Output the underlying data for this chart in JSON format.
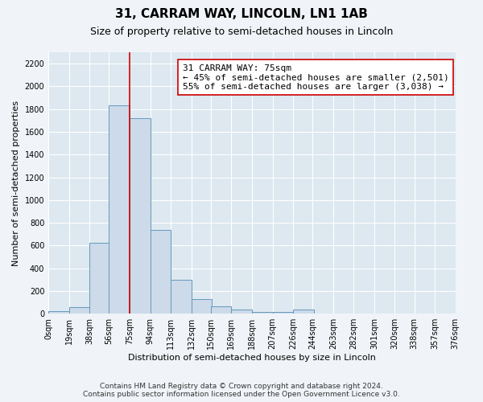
{
  "title": "31, CARRAM WAY, LINCOLN, LN1 1AB",
  "subtitle": "Size of property relative to semi-detached houses in Lincoln",
  "xlabel": "Distribution of semi-detached houses by size in Lincoln",
  "ylabel": "Number of semi-detached properties",
  "footer_line1": "Contains HM Land Registry data © Crown copyright and database right 2024.",
  "footer_line2": "Contains public sector information licensed under the Open Government Licence v3.0.",
  "bar_left_edges": [
    0,
    19,
    38,
    56,
    75,
    94,
    113,
    132,
    150,
    169,
    188,
    207,
    226,
    244,
    263,
    282,
    301,
    320,
    338,
    357
  ],
  "bar_heights": [
    20,
    60,
    625,
    1830,
    1720,
    740,
    300,
    130,
    65,
    35,
    15,
    15,
    40,
    0,
    0,
    0,
    0,
    0,
    0,
    0
  ],
  "bin_width": 19,
  "bar_fill_color": "#ccdaea",
  "bar_edge_color": "#6699bb",
  "vline_x": 75,
  "vline_color": "#cc0000",
  "annotation_title": "31 CARRAM WAY: 75sqm",
  "annotation_line1": "← 45% of semi-detached houses are smaller (2,501)",
  "annotation_line2": "55% of semi-detached houses are larger (3,038) →",
  "annotation_box_color": "#ffffff",
  "annotation_box_edge": "#cc0000",
  "ylim": [
    0,
    2300
  ],
  "yticks": [
    0,
    200,
    400,
    600,
    800,
    1000,
    1200,
    1400,
    1600,
    1800,
    2000,
    2200
  ],
  "x_tick_labels": [
    "0sqm",
    "19sqm",
    "38sqm",
    "56sqm",
    "75sqm",
    "94sqm",
    "113sqm",
    "132sqm",
    "150sqm",
    "169sqm",
    "188sqm",
    "207sqm",
    "226sqm",
    "244sqm",
    "263sqm",
    "282sqm",
    "301sqm",
    "320sqm",
    "338sqm",
    "357sqm",
    "376sqm"
  ],
  "plot_bg_color": "#dde8f0",
  "fig_bg_color": "#f0f4f8",
  "grid_color": "#ffffff",
  "title_fontsize": 11,
  "subtitle_fontsize": 9,
  "axis_label_fontsize": 8,
  "tick_fontsize": 7,
  "annotation_fontsize": 8,
  "footer_fontsize": 6.5
}
